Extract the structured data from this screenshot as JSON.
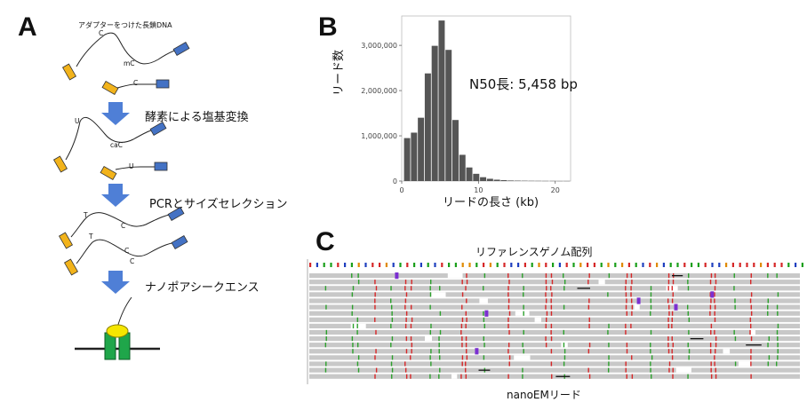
{
  "panels": {
    "a": {
      "letter": "A",
      "top_label": "アダプターをつけた長鎖DNA",
      "steps": [
        "酵素による塩基変換",
        "PCRとサイズセレクション",
        "ナノポアシークエンス"
      ],
      "base_labels": {
        "c1": "C",
        "mc1": "mC",
        "c2": "C",
        "u1": "U",
        "cac1": "caC",
        "u2": "U",
        "t1": "T",
        "c3": "C",
        "t2": "T",
        "c4": "C",
        "c5": "C"
      },
      "colors": {
        "adapter_left": "#F2B31B",
        "adapter_right": "#4472C4",
        "arrow": "#4F7FD6",
        "pore": "#1FA64A",
        "motor": "#F5E600"
      }
    },
    "b": {
      "letter": "B",
      "annotation": "N50長: 5,458 bp"
    },
    "c": {
      "letter": "C",
      "reference_label": "リファレンスゲノム配列",
      "reads_label": "nanoEMリード"
    }
  },
  "chart_data": {
    "type": "bar",
    "xlabel": "リードの長さ (kb)",
    "ylabel": "リード数",
    "xlim": [
      0,
      22
    ],
    "ylim": [
      0,
      3650000
    ],
    "x_ticks": [
      0,
      10,
      20
    ],
    "y_ticks": [
      0,
      1000000,
      2000000,
      3000000
    ],
    "y_tick_labels": [
      "0",
      "1,000,000",
      "2,000,000",
      "3,000,000"
    ],
    "bin_width_kb": 0.9,
    "bin_starts_kb": [
      0.3,
      1.2,
      2.1,
      3.0,
      3.9,
      4.8,
      5.7,
      6.6,
      7.5,
      8.4,
      9.3,
      10.2,
      11.1,
      12.0,
      12.9,
      13.8,
      14.7,
      15.6,
      16.5,
      17.4,
      18.3,
      19.3,
      20.2,
      21.1
    ],
    "values": [
      950000,
      1070000,
      1400000,
      2380000,
      2990000,
      3550000,
      2900000,
      1350000,
      580000,
      300000,
      160000,
      85000,
      50000,
      30000,
      20000,
      12000,
      9000,
      7000,
      5000,
      4000,
      3000,
      3000,
      2000,
      2000
    ],
    "bar_color": "#555555",
    "grid": false
  }
}
